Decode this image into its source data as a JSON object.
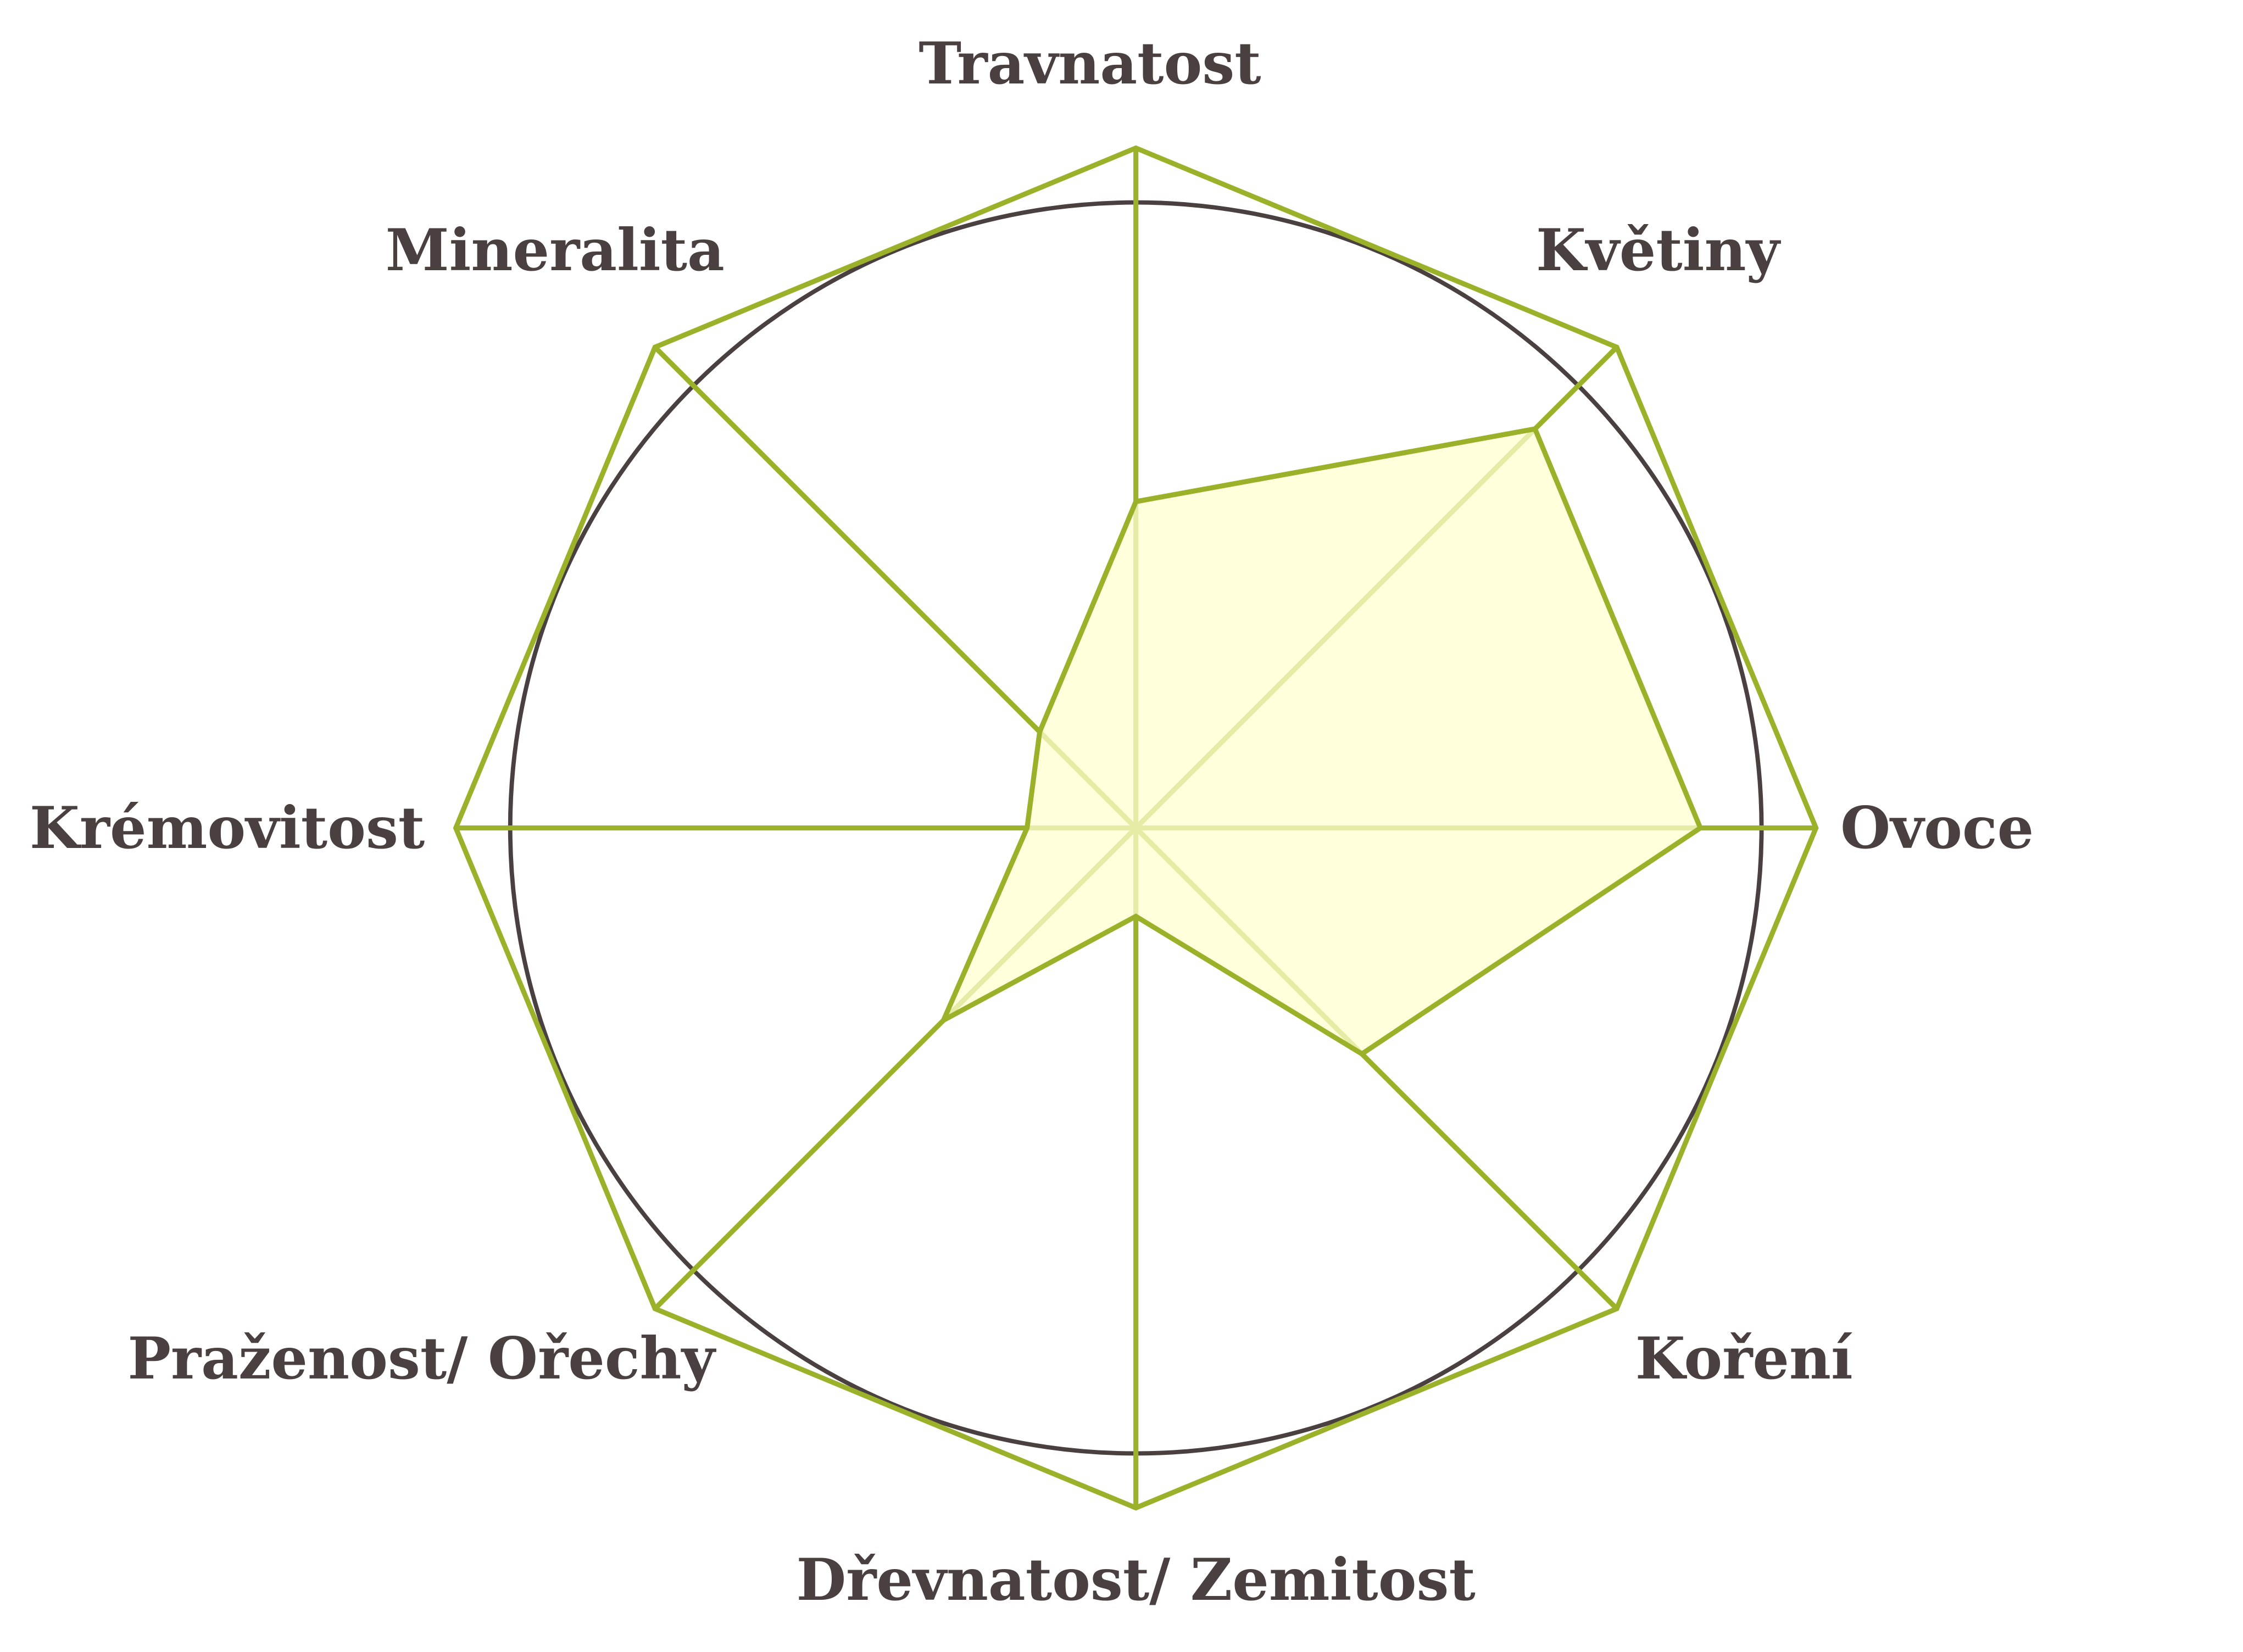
{
  "chart_data": {
    "type": "radar",
    "categories": [
      "Travnatost",
      "Květiny",
      "Ovoce",
      "Koření",
      "Dřevnatost/ Zemitost",
      "Praženost/ Ořechy",
      "Krémovitost",
      "Mineralita"
    ],
    "values": [
      4.8,
      8.3,
      8.3,
      4.7,
      1.3,
      4.0,
      1.6,
      2.0
    ],
    "range": [
      0,
      10
    ],
    "reference_circle": 9.2,
    "grid": false,
    "legend": "none",
    "colors": {
      "line": "#9bb12a",
      "fill": "#ffffd0",
      "circle": "#4a4040",
      "text": "#4a4040"
    }
  }
}
